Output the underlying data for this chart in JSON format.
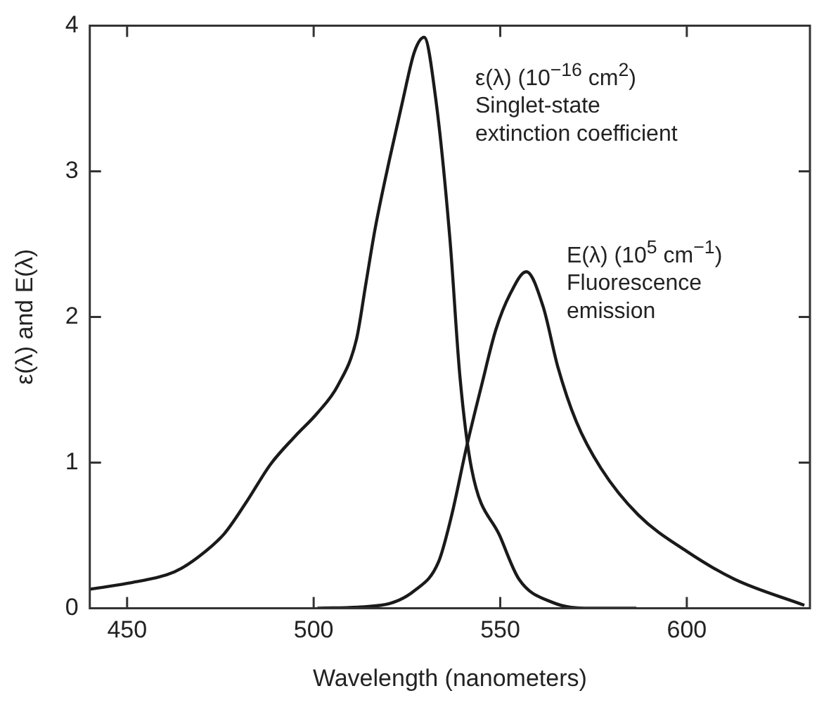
{
  "chart_data": {
    "type": "line",
    "xlabel": "Wavelength (nanometers)",
    "ylabel": "ε(λ) and E(λ)",
    "xlim": [
      440,
      633
    ],
    "xticks": [
      450,
      500,
      550,
      600
    ],
    "ylim": [
      0,
      4
    ],
    "yticks": [
      0,
      1,
      2,
      3,
      4
    ],
    "grid": false,
    "legend": false,
    "marker": "none",
    "line_style": "solid",
    "series": [
      {
        "color": "#1a1a1a",
        "x": [
          440,
          450,
          462.7,
          469,
          476,
          482,
          488.5,
          495,
          501,
          506.5,
          511.5,
          514,
          516.5,
          520.4,
          524,
          527,
          529.6,
          532.7,
          536.5,
          539.2,
          542.3,
          550,
          555,
          564,
          574,
          586.5
        ],
        "values": [
          0.13,
          0.17,
          0.25,
          0.35,
          0.51,
          0.73,
          0.99,
          1.18,
          1.34,
          1.53,
          1.85,
          2.23,
          2.61,
          3.09,
          3.5,
          3.82,
          3.92,
          3.5,
          2.54,
          1.59,
          0.96,
          0.49,
          0.2,
          0.04,
          0,
          0
        ]
      },
      {
        "color": "#1a1a1a",
        "x": [
          501,
          518,
          527,
          533.5,
          537,
          541,
          545,
          548.8,
          552.7,
          557,
          561.5,
          565.4,
          570.4,
          577,
          587,
          600,
          612.7,
          631.5
        ],
        "values": [
          0,
          0.02,
          0.12,
          0.32,
          0.64,
          1.11,
          1.53,
          1.91,
          2.16,
          2.31,
          2.07,
          1.66,
          1.28,
          0.96,
          0.64,
          0.39,
          0.2,
          0.02
        ]
      }
    ],
    "annotations": [
      "ε(λ) (10$^{−16}$ cm$^{2}$)\nSinglet-state\nextinction coefficient",
      "E(λ) (10$^{5}$ cm$^{−1}$)\nFluorescence\nemission"
    ]
  }
}
